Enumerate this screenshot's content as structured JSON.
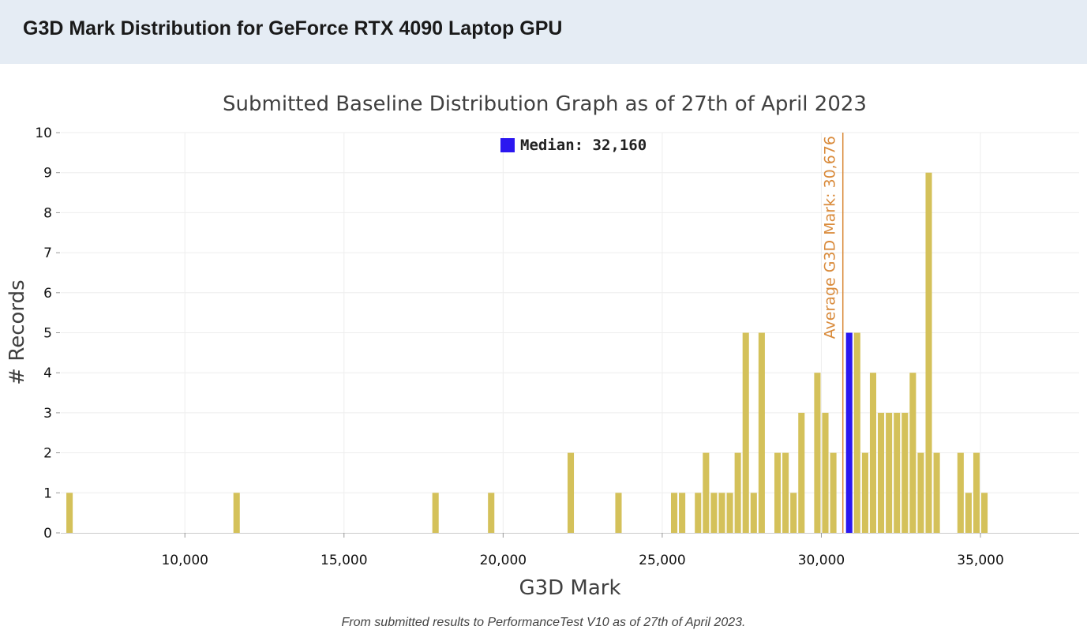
{
  "header": {
    "title": "G3D Mark Distribution for GeForce RTX 4090 Laptop GPU"
  },
  "footnote": "From submitted results to PerformanceTest V10 as of 27th of April 2023.",
  "colors": {
    "bar": "#d4c15a",
    "median_bar": "#2b17f0",
    "average_line": "#d98a3a",
    "grid": "#eeeeee",
    "header_bg": "#e5ecf4"
  },
  "chart_data": {
    "type": "bar",
    "title": "Submitted Baseline Distribution Graph as of 27th of April 2023",
    "xlabel": "G3D Mark",
    "ylabel": "# Records",
    "xlim": [
      6100,
      38100
    ],
    "ylim": [
      0,
      10
    ],
    "bin_width": 250,
    "xticks": [
      10000,
      15000,
      20000,
      25000,
      30000,
      35000
    ],
    "xtick_labels": [
      "10,000",
      "15,000",
      "20,000",
      "25,000",
      "30,000",
      "35,000"
    ],
    "yticks": [
      0,
      1,
      2,
      3,
      4,
      5,
      6,
      7,
      8,
      9,
      10
    ],
    "ytick_labels": [
      "0",
      "1",
      "2",
      "3",
      "4",
      "5",
      "6",
      "7",
      "8",
      "9",
      "10"
    ],
    "legend": "Median: 32,160",
    "legend_position": "top-center",
    "average_label": "Average G3D Mark: 30,676",
    "average_value": 30676,
    "median_value": 32160,
    "bars": [
      {
        "x": 6250,
        "y": 1
      },
      {
        "x": 11500,
        "y": 1
      },
      {
        "x": 17750,
        "y": 1
      },
      {
        "x": 19500,
        "y": 1
      },
      {
        "x": 22000,
        "y": 2
      },
      {
        "x": 23500,
        "y": 1
      },
      {
        "x": 25250,
        "y": 1
      },
      {
        "x": 25500,
        "y": 1
      },
      {
        "x": 26000,
        "y": 1
      },
      {
        "x": 26250,
        "y": 2
      },
      {
        "x": 26500,
        "y": 1
      },
      {
        "x": 26750,
        "y": 1
      },
      {
        "x": 27000,
        "y": 1
      },
      {
        "x": 27250,
        "y": 2
      },
      {
        "x": 27500,
        "y": 5
      },
      {
        "x": 27750,
        "y": 1
      },
      {
        "x": 28000,
        "y": 5
      },
      {
        "x": 28500,
        "y": 2
      },
      {
        "x": 28750,
        "y": 2
      },
      {
        "x": 29000,
        "y": 1
      },
      {
        "x": 29250,
        "y": 3
      },
      {
        "x": 29750,
        "y": 4
      },
      {
        "x": 30000,
        "y": 3
      },
      {
        "x": 30250,
        "y": 2
      },
      {
        "x": 31000,
        "y": 5
      },
      {
        "x": 31250,
        "y": 2
      },
      {
        "x": 31500,
        "y": 4
      },
      {
        "x": 31750,
        "y": 3
      },
      {
        "x": 32000,
        "y": 3
      },
      {
        "x": 32250,
        "y": 3
      },
      {
        "x": 32500,
        "y": 3
      },
      {
        "x": 32750,
        "y": 4
      },
      {
        "x": 33000,
        "y": 2
      },
      {
        "x": 33250,
        "y": 9
      },
      {
        "x": 33500,
        "y": 2
      },
      {
        "x": 34250,
        "y": 2
      },
      {
        "x": 34500,
        "y": 1
      },
      {
        "x": 34750,
        "y": 2
      },
      {
        "x": 35000,
        "y": 1
      }
    ],
    "median_bar": {
      "x": 30750,
      "y": 5
    }
  }
}
